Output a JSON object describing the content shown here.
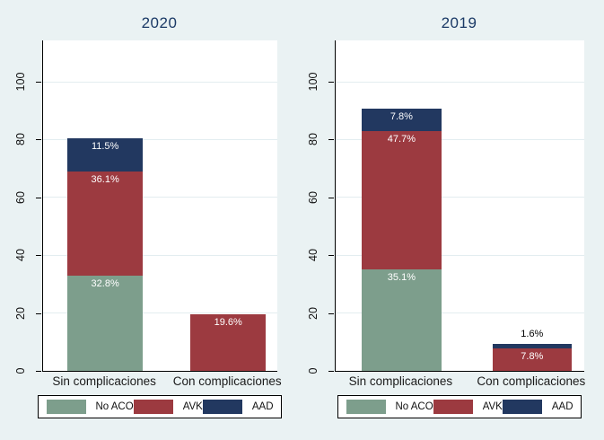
{
  "background_color": "#EAF2F3",
  "plot_background_color": "#FFFFFF",
  "gridline_color": "#E3EDF0",
  "title_color": "#1B3A66",
  "chart_data": [
    {
      "type": "bar",
      "stacked": true,
      "title": "2020",
      "categories": [
        "Sin complicaciones",
        "Con complicaciones"
      ],
      "series": [
        {
          "name": "No ACO",
          "color": "#7D9E8C",
          "values": [
            32.8,
            0
          ],
          "labels": [
            "32.8%",
            ""
          ]
        },
        {
          "name": "AVK",
          "color": "#9C3A40",
          "values": [
            36.1,
            19.6
          ],
          "labels": [
            "36.1%",
            "19.6%"
          ]
        },
        {
          "name": "AAD",
          "color": "#223860",
          "values": [
            11.5,
            0
          ],
          "labels": [
            "11.5%",
            ""
          ]
        }
      ],
      "xlabel": "",
      "ylabel": "",
      "ylim": [
        0,
        113
      ],
      "yticks": [
        0,
        20,
        40,
        60,
        80,
        100
      ],
      "grid": true,
      "legend": {
        "position": "bottom",
        "entries": [
          "No ACO",
          "AVK",
          "AAD"
        ]
      }
    },
    {
      "type": "bar",
      "stacked": true,
      "title": "2019",
      "categories": [
        "Sin complicaciones",
        "Con complicaciones"
      ],
      "series": [
        {
          "name": "No ACO",
          "color": "#7D9E8C",
          "values": [
            35.1,
            0
          ],
          "labels": [
            "35.1%",
            ""
          ]
        },
        {
          "name": "AVK",
          "color": "#9C3A40",
          "values": [
            47.7,
            7.8
          ],
          "labels": [
            "47.7%",
            "7.8%"
          ]
        },
        {
          "name": "AAD",
          "color": "#223860",
          "values": [
            7.8,
            1.6
          ],
          "labels": [
            "7.8%",
            "1.6%"
          ]
        }
      ],
      "xlabel": "",
      "ylabel": "",
      "ylim": [
        0,
        113
      ],
      "yticks": [
        0,
        20,
        40,
        60,
        80,
        100
      ],
      "grid": true,
      "legend": {
        "position": "bottom",
        "entries": [
          "No ACO",
          "AVK",
          "AAD"
        ]
      }
    }
  ]
}
